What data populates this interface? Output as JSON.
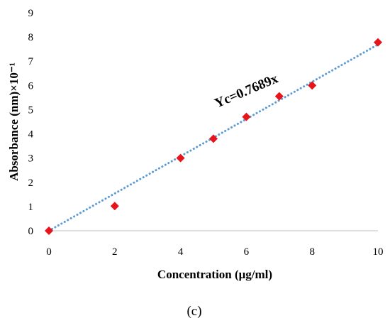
{
  "chart_data": {
    "type": "scatter",
    "xlabel": "Concentration (μg/ml)",
    "ylabel": "Absorbance (nm)×10⁻¹",
    "xlim": [
      0,
      10
    ],
    "ylim": [
      0,
      9
    ],
    "x_ticks": [
      0,
      2,
      4,
      6,
      8,
      10
    ],
    "y_ticks": [
      0,
      1,
      2,
      3,
      4,
      5,
      6,
      7,
      8,
      9
    ],
    "grid": false,
    "legend": "none",
    "series": [
      {
        "x": [
          0,
          2,
          4,
          5,
          6,
          7,
          8,
          10
        ],
        "y": [
          0,
          1.02,
          3.0,
          3.8,
          4.7,
          5.55,
          6.0,
          7.78
        ],
        "marker": "diamond",
        "color": "#e8141c"
      }
    ],
    "trendline": {
      "slope": 0.7689,
      "intercept": 0,
      "style": "dotted",
      "color": "#5b9bd5",
      "label": "Yc=0.7689x"
    }
  },
  "caption": "(c)"
}
